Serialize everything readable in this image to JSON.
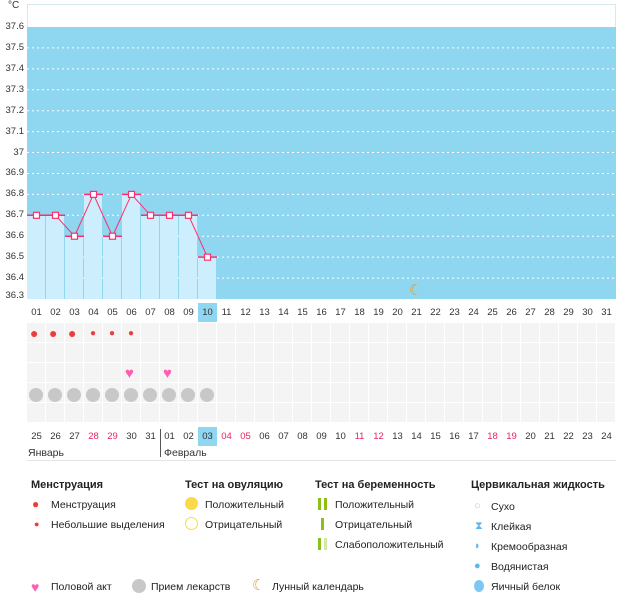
{
  "chart_data": {
    "type": "bar",
    "unit_label": "°C",
    "ylim": [
      36.3,
      37.6
    ],
    "yticks": [
      "37.6",
      "37.5",
      "37.4",
      "37.3",
      "37.2",
      "37.1",
      "37",
      "36.9",
      "36.8",
      "36.7",
      "36.6",
      "36.5",
      "36.4",
      "36.3"
    ],
    "cycle_days": [
      "01",
      "02",
      "03",
      "04",
      "05",
      "06",
      "07",
      "08",
      "09",
      "10",
      "11",
      "12",
      "13",
      "14",
      "15",
      "16",
      "17",
      "18",
      "19",
      "20",
      "21",
      "22",
      "23",
      "24",
      "25",
      "26",
      "27",
      "28",
      "29",
      "30",
      "31"
    ],
    "temperatures": [
      36.7,
      36.7,
      36.6,
      36.8,
      36.6,
      36.8,
      36.7,
      36.7,
      36.7,
      36.5
    ],
    "current_cycle_day_index": 9,
    "dates": [
      "25",
      "26",
      "27",
      "28",
      "29",
      "30",
      "31",
      "01",
      "02",
      "03",
      "04",
      "05",
      "06",
      "07",
      "08",
      "09",
      "10",
      "11",
      "12",
      "13",
      "14",
      "15",
      "16",
      "17",
      "18",
      "19",
      "20",
      "21",
      "22",
      "23",
      "24"
    ],
    "weekend_indices": [
      3,
      4,
      10,
      11,
      17,
      18,
      24,
      25
    ],
    "today_date_index": 9,
    "months": [
      "Январь",
      "Февраль"
    ],
    "menstruation": [
      "heavy",
      "heavy",
      "heavy",
      "light",
      "light",
      "light"
    ],
    "intercourse_indices": [
      5,
      7
    ],
    "medication_count": 10,
    "moon_index": 20
  },
  "legend": {
    "menstruation": {
      "title": "Менструация",
      "items": [
        "Менструация",
        "Небольшие выделения"
      ]
    },
    "ovulation": {
      "title": "Тест на овуляцию",
      "items": [
        "Положительный",
        "Отрицательный"
      ]
    },
    "pregnancy": {
      "title": "Тест на беременность",
      "items": [
        "Положительный",
        "Отрицательный",
        "Слабоположительный"
      ]
    },
    "cervical": {
      "title": "Цервикальная жидкость",
      "items": [
        "Сухо",
        "Клейкая",
        "Кремообразная",
        "Водянистая",
        "Яичный белок"
      ]
    },
    "other": [
      "Половой акт",
      "Прием лекарств",
      "Лунный календарь"
    ]
  },
  "colors": {
    "plot_bg": "#8fd6f0",
    "bar": "#cdeefc",
    "line": "#ff2f6e",
    "weekend": "#e8245c",
    "blood": "#ef3b3b",
    "heart": "#ff5fb3",
    "pill": "#c8c8c8",
    "moon": "#f29a1a"
  }
}
